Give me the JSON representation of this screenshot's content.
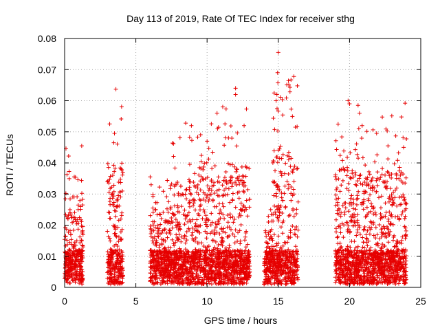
{
  "chart_data": {
    "type": "scatter",
    "title": "Day 113 of 2019, Rate Of TEC Index for receiver sthg",
    "xlabel": "GPS time / hours",
    "ylabel": "ROTI / TECUs",
    "xlim": [
      0,
      25
    ],
    "ylim": [
      0,
      0.08
    ],
    "x_ticks": [
      "0",
      "5",
      "10",
      "15",
      "20",
      "25"
    ],
    "y_ticks": [
      "0",
      "0.01",
      "0.02",
      "0.03",
      "0.04",
      "0.05",
      "0.06",
      "0.07",
      "0.08"
    ],
    "grid": true,
    "marker": "+",
    "color": "#e60000",
    "series": [
      {
        "name": "ROTI",
        "segments": [
          {
            "start": 0.0,
            "end": 1.3,
            "max": 0.046
          },
          {
            "start": 3.0,
            "end": 4.1,
            "max": 0.064
          },
          {
            "start": 6.0,
            "end": 7.4,
            "max": 0.037
          },
          {
            "start": 7.4,
            "end": 9.5,
            "max": 0.053
          },
          {
            "start": 9.5,
            "end": 11.3,
            "max": 0.056
          },
          {
            "start": 11.3,
            "end": 13.0,
            "max": 0.064
          },
          {
            "start": 14.0,
            "end": 14.6,
            "max": 0.025
          },
          {
            "start": 14.6,
            "end": 16.4,
            "max": 0.076
          },
          {
            "start": 19.0,
            "end": 20.2,
            "max": 0.06
          },
          {
            "start": 20.2,
            "end": 22.0,
            "max": 0.059
          },
          {
            "start": 22.0,
            "end": 24.0,
            "max": 0.059
          }
        ],
        "peaks": [
          [
            1.2,
            0.0455
          ],
          [
            3.6,
            0.0637
          ],
          [
            3.5,
            0.0495
          ],
          [
            3.45,
            0.0465
          ],
          [
            8.5,
            0.0528
          ],
          [
            8.9,
            0.052
          ],
          [
            10.0,
            0.047
          ],
          [
            10.7,
            0.056
          ],
          [
            11.1,
            0.058
          ],
          [
            11.5,
            0.048
          ],
          [
            12.0,
            0.064
          ],
          [
            12.0,
            0.062
          ],
          [
            12.6,
            0.052
          ],
          [
            15.0,
            0.0755
          ],
          [
            14.95,
            0.069
          ],
          [
            14.9,
            0.062
          ],
          [
            14.85,
            0.06
          ],
          [
            16.2,
            0.0515
          ],
          [
            19.2,
            0.0525
          ],
          [
            19.9,
            0.06
          ],
          [
            20.0,
            0.059
          ],
          [
            20.6,
            0.0585
          ],
          [
            20.7,
            0.056
          ],
          [
            21.9,
            0.0495
          ],
          [
            22.7,
            0.0455
          ],
          [
            23.9,
            0.0592
          ],
          [
            23.8,
            0.045
          ]
        ]
      }
    ]
  }
}
